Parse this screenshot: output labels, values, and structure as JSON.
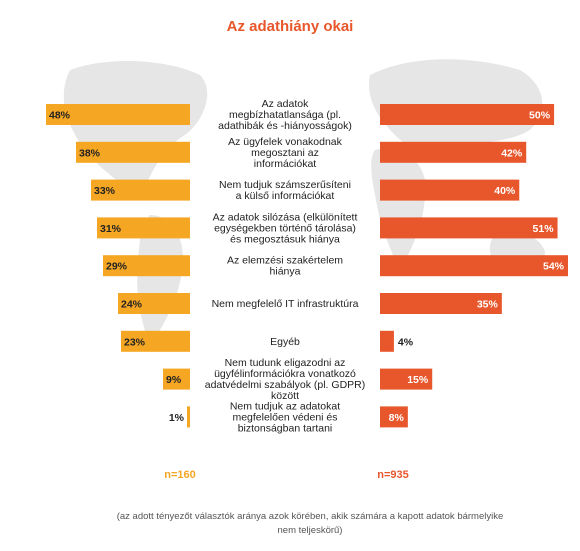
{
  "chart_data": {
    "type": "bar",
    "title": "Az adathiány okai",
    "categories": [
      "Az adatok megbízhatatlansága (pl. adathibák és -hiányosságok)",
      "Az ügyfelek vonakodnak megosztani az információkat",
      "Nem tudjuk számszerűsíteni a külső információkat",
      "Az adatok silózása (elkülönített egységekben történő tárolása) és megosztásuk hiánya",
      "Az elemzési szakértelem hiánya",
      "Nem megfelelő IT infrastruktúra",
      "Egyéb",
      "Nem tudunk eligazodni az ügyfélinformációkra vonatkozó adatvédelmi szabályok (pl. GDPR) között",
      "Nem tudjuk az adatokat megfelelően védeni és biztonságban tartani"
    ],
    "category_lines": [
      [
        "Az adatok",
        "megbízhatatlansága (pl.",
        "adathibák és -hiányosságok)"
      ],
      [
        "Az ügyfelek vonakodnak",
        "megosztani az",
        "információkat"
      ],
      [
        "Nem tudjuk számszerűsíteni",
        "a külső információkat"
      ],
      [
        "Az adatok silózása (elkülönített",
        "egységekben történő tárolása)",
        "és megosztásuk hiánya"
      ],
      [
        "Az elemzési szakértelem",
        "hiánya"
      ],
      [
        "Nem megfelelő IT infrastruktúra"
      ],
      [
        "Egyéb"
      ],
      [
        "Nem tudunk eligazodni az",
        "ügyfélinformációkra vonatkozó",
        "adatvédelmi szabályok (pl. GDPR)",
        "között"
      ],
      [
        "Nem tudjuk az adatokat",
        "megfelelően védeni és",
        "biztonságban tartani"
      ]
    ],
    "series": [
      {
        "values": [
          48,
          38,
          33,
          31,
          29,
          24,
          23,
          9,
          1
        ],
        "labels": [
          "48%",
          "38%",
          "33%",
          "31%",
          "29%",
          "24%",
          "23%",
          "9%",
          "1%"
        ],
        "color": "#f5a623",
        "sample": "n=160",
        "side": "left"
      },
      {
        "values": [
          50,
          42,
          40,
          51,
          54,
          35,
          4,
          15,
          8
        ],
        "labels": [
          "50%",
          "42%",
          "40%",
          "51%",
          "54%",
          "35%",
          "4%",
          "15%",
          "8%"
        ],
        "color": "#e8572c",
        "sample": "n=935",
        "side": "right"
      }
    ],
    "xlim": [
      0,
      54
    ],
    "legend": "none",
    "grid": false
  },
  "footnote": "(az adott tényezőt választók aránya azok körében, akik számára a kapott adatok bármelyike nem teljeskörű)",
  "colors": {
    "title": "#e8572c",
    "left_bar": "#f5a623",
    "right_bar": "#e8572c",
    "map": "#e6e6e6"
  }
}
